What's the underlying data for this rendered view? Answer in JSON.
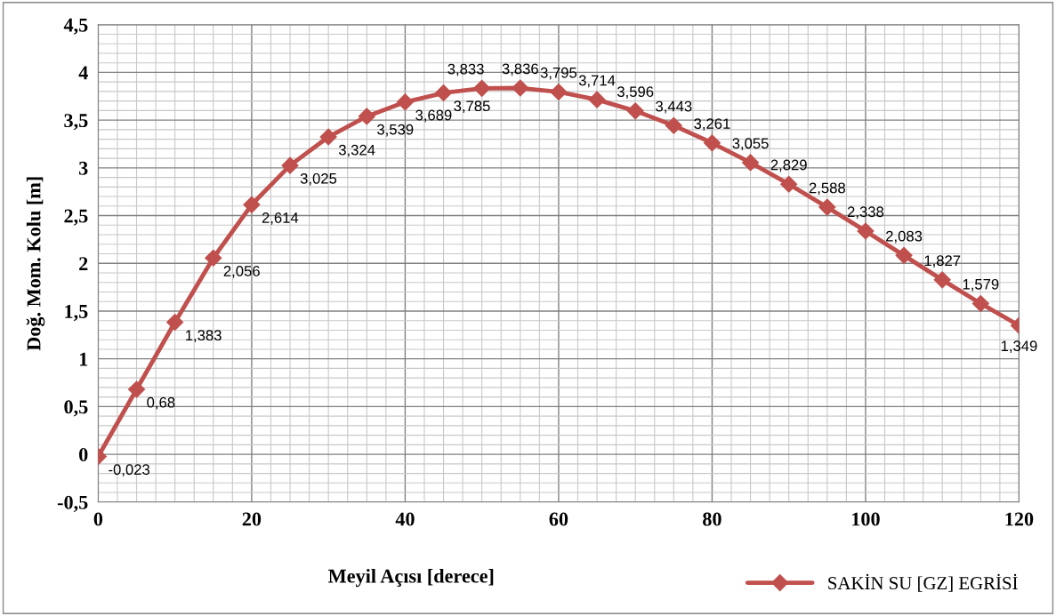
{
  "chart_data": {
    "type": "line",
    "xlabel": "Meyil Açısı [derece]",
    "ylabel": "Doğ. Mom. Kolu [m]",
    "x": [
      0,
      5,
      10,
      15,
      20,
      25,
      30,
      35,
      40,
      45,
      50,
      55,
      60,
      65,
      70,
      75,
      80,
      85,
      90,
      95,
      100,
      105,
      110,
      115,
      120
    ],
    "series": [
      {
        "name": "SAKİN SU [GZ] EGRİSİ",
        "color": "#c0504d",
        "values": [
          -0.023,
          0.68,
          1.383,
          2.056,
          2.614,
          3.025,
          3.324,
          3.539,
          3.689,
          3.785,
          3.833,
          3.836,
          3.795,
          3.714,
          3.596,
          3.443,
          3.261,
          3.055,
          2.829,
          2.588,
          2.338,
          2.083,
          1.827,
          1.579,
          1.349
        ],
        "value_labels": [
          "-0,023",
          "0,68",
          "1,383",
          "2,056",
          "2,614",
          "3,025",
          "3,324",
          "3,539",
          "3,689",
          "3,785",
          "3,833",
          "3,836",
          "3,795",
          "3,714",
          "3,596",
          "3,443",
          "3,261",
          "3,055",
          "2,829",
          "2,588",
          "2,338",
          "2,083",
          "1,827",
          "1,579",
          "1,349"
        ]
      }
    ],
    "xlim": [
      0,
      120
    ],
    "xticks": [
      0,
      20,
      40,
      60,
      80,
      100,
      120
    ],
    "ylim": [
      -0.5,
      4.5
    ],
    "yticks": [
      {
        "value": -0.5,
        "label": "-0,5"
      },
      0,
      {
        "value": 0.5,
        "label": "0,5"
      },
      1,
      {
        "value": 1.5,
        "label": "1,5"
      },
      2,
      {
        "value": 2.5,
        "label": "2,5"
      },
      3,
      {
        "value": 3.5,
        "label": "3,5"
      },
      4,
      {
        "value": 4.5,
        "label": "4,5"
      }
    ],
    "grid": true,
    "legend": "bottom right",
    "marker": "diamond",
    "line_style": "solid"
  }
}
